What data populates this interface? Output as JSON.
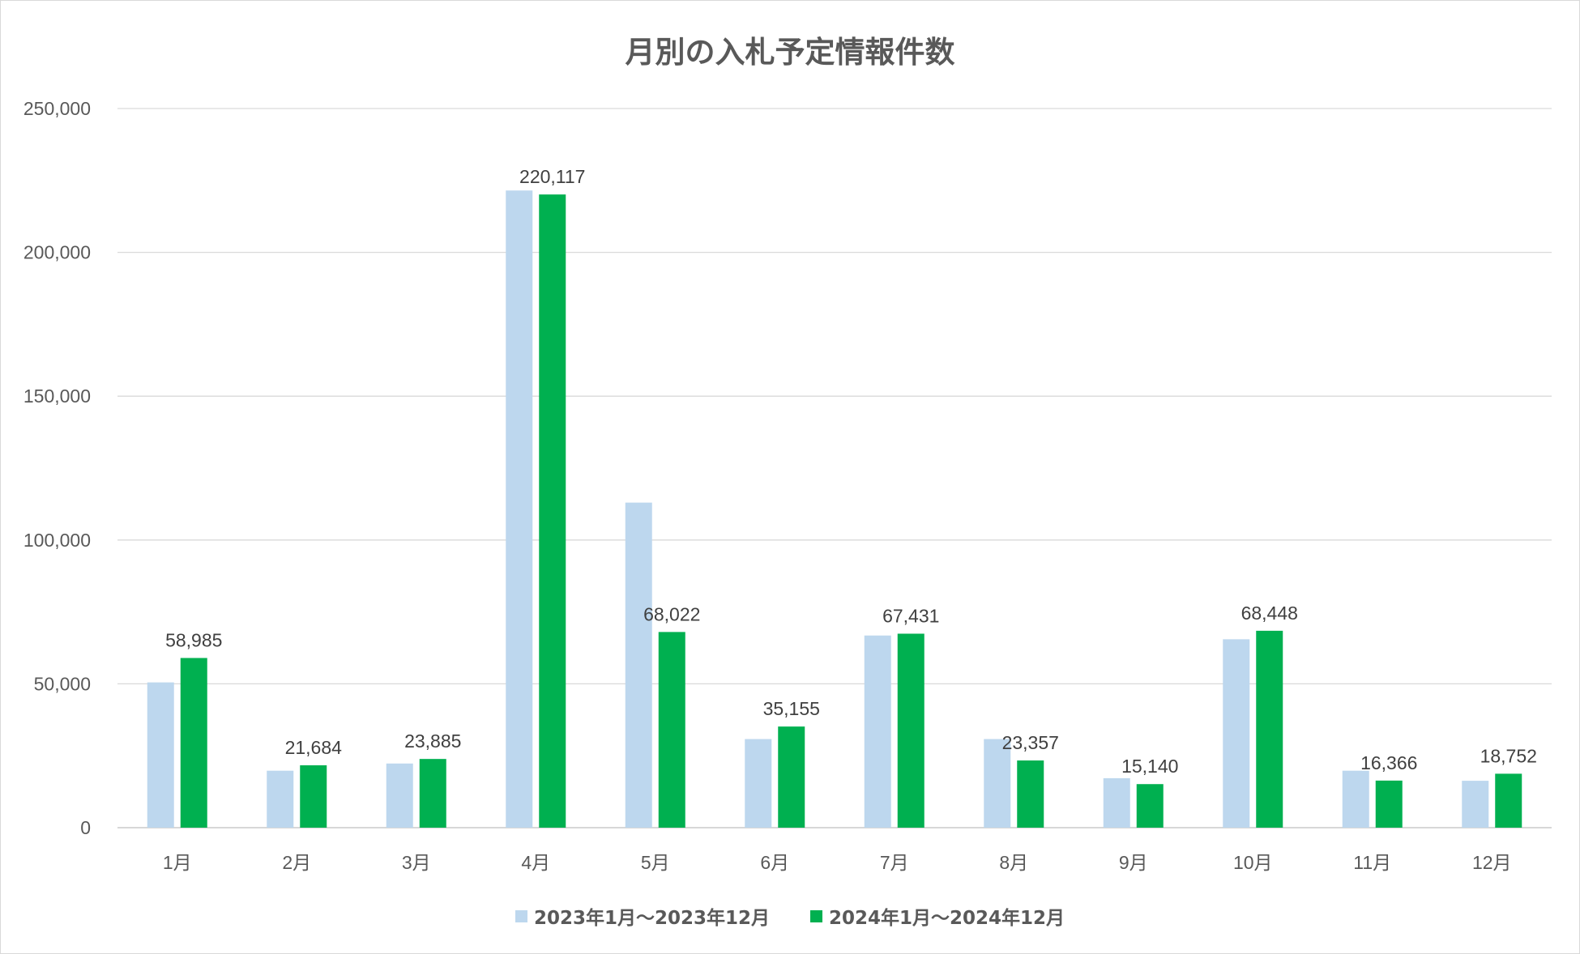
{
  "chart_data": {
    "type": "bar",
    "title": "月別の入札予定情報件数",
    "categories": [
      "1月",
      "2月",
      "3月",
      "4月",
      "5月",
      "6月",
      "7月",
      "8月",
      "9月",
      "10月",
      "11月",
      "12月"
    ],
    "series": [
      {
        "name": "2023年1月～2023年12月",
        "color": "#bdd7ee",
        "values": [
          50500,
          19800,
          22300,
          221500,
          113000,
          30800,
          66800,
          30800,
          17200,
          65500,
          19800,
          16300
        ]
      },
      {
        "name": "2024年1月～2024年12月",
        "color": "#00b050",
        "values": [
          58985,
          21684,
          23885,
          220117,
          68022,
          35155,
          67431,
          23357,
          15140,
          68448,
          16366,
          18752
        ],
        "data_labels": [
          "58,985",
          "21,684",
          "23,885",
          "220,117",
          "68,022",
          "35,155",
          "67,431",
          "23,357",
          "15,140",
          "68,448",
          "16,366",
          "18,752"
        ]
      }
    ],
    "ylim": [
      0,
      250000
    ],
    "yticks": [
      0,
      50000,
      100000,
      150000,
      200000,
      250000
    ],
    "ytick_labels": [
      "0",
      "50,000",
      "100,000",
      "150,000",
      "200,000",
      "250,000"
    ],
    "grid": true,
    "legend_position": "bottom"
  }
}
